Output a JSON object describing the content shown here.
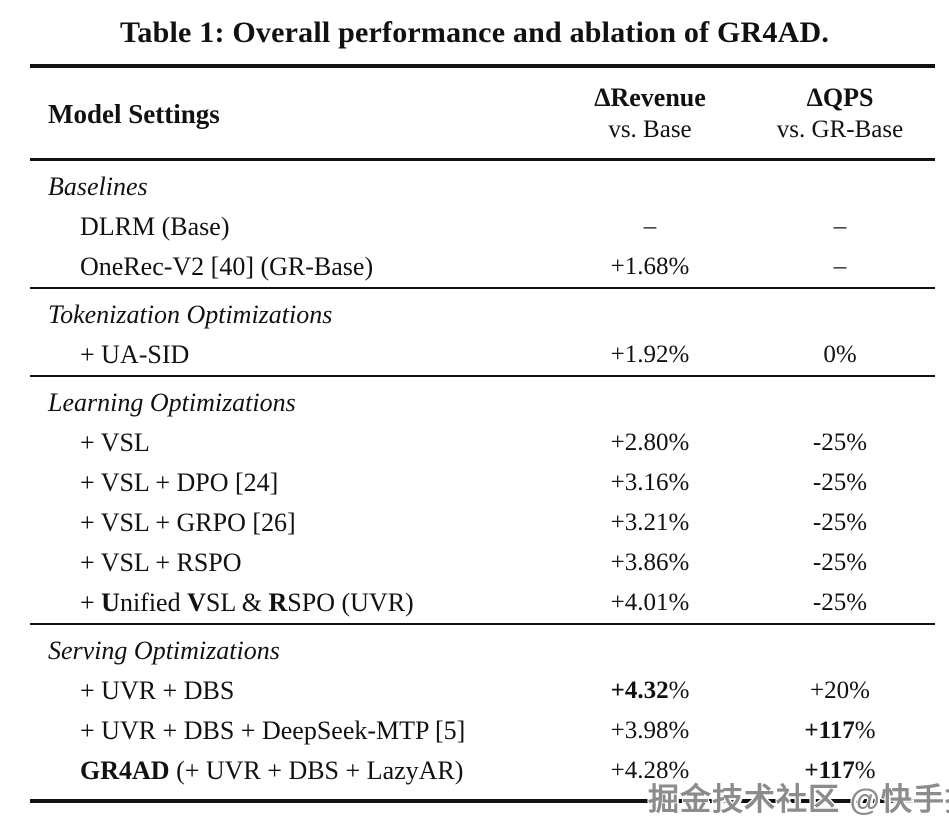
{
  "caption": "Table 1: Overall performance and ablation of GR4AD.",
  "colors": {
    "text": "#111111",
    "rule": "#111111",
    "background": "#ffffff",
    "watermark": "#8c8c8c"
  },
  "table": {
    "columns": {
      "model": "Model Settings",
      "revenue": {
        "label": "ΔRevenue",
        "sub": "vs. Base"
      },
      "qps": {
        "label": "ΔQPS",
        "sub": "vs. GR-Base"
      }
    },
    "sections": [
      {
        "name": "Baselines",
        "rows": [
          {
            "model": [
              {
                "t": "DLRM (Base)"
              }
            ],
            "revenue": [
              {
                "t": "–"
              }
            ],
            "qps": [
              {
                "t": "–"
              }
            ]
          },
          {
            "model": [
              {
                "t": "OneRec-V2 [40] (GR-Base)"
              }
            ],
            "revenue": [
              {
                "t": "+1.68%"
              }
            ],
            "qps": [
              {
                "t": "–"
              }
            ]
          }
        ]
      },
      {
        "name": "Tokenization Optimizations",
        "rows": [
          {
            "model": [
              {
                "t": "+ UA-SID"
              }
            ],
            "revenue": [
              {
                "t": "+1.92%"
              }
            ],
            "qps": [
              {
                "t": "0%"
              }
            ]
          }
        ]
      },
      {
        "name": "Learning Optimizations",
        "rows": [
          {
            "model": [
              {
                "t": "+ VSL"
              }
            ],
            "revenue": [
              {
                "t": "+2.80%"
              }
            ],
            "qps": [
              {
                "t": "-25%"
              }
            ]
          },
          {
            "model": [
              {
                "t": "+ VSL + DPO [24]"
              }
            ],
            "revenue": [
              {
                "t": "+3.16%"
              }
            ],
            "qps": [
              {
                "t": "-25%"
              }
            ]
          },
          {
            "model": [
              {
                "t": "+ VSL + GRPO [26]"
              }
            ],
            "revenue": [
              {
                "t": "+3.21%"
              }
            ],
            "qps": [
              {
                "t": "-25%"
              }
            ]
          },
          {
            "model": [
              {
                "t": "+ VSL + RSPO"
              }
            ],
            "revenue": [
              {
                "t": "+3.86%"
              }
            ],
            "qps": [
              {
                "t": "-25%"
              }
            ]
          },
          {
            "model": [
              {
                "t": "+ "
              },
              {
                "t": "U",
                "b": true
              },
              {
                "t": "nified "
              },
              {
                "t": "V",
                "b": true
              },
              {
                "t": "SL & "
              },
              {
                "t": "R",
                "b": true
              },
              {
                "t": "SPO (UVR)"
              }
            ],
            "revenue": [
              {
                "t": "+4.01%"
              }
            ],
            "qps": [
              {
                "t": "-25%"
              }
            ]
          }
        ]
      },
      {
        "name": "Serving Optimizations",
        "rows": [
          {
            "model": [
              {
                "t": "+ UVR + DBS"
              }
            ],
            "revenue": [
              {
                "t": "+4.32",
                "b": true
              },
              {
                "t": "%"
              }
            ],
            "qps": [
              {
                "t": "+20%"
              }
            ]
          },
          {
            "model": [
              {
                "t": "+ UVR + DBS + DeepSeek-MTP [5]"
              }
            ],
            "revenue": [
              {
                "t": "+3.98%"
              }
            ],
            "qps": [
              {
                "t": "+117",
                "b": true
              },
              {
                "t": "%"
              }
            ]
          },
          {
            "model": [
              {
                "t": "GR4AD",
                "b": true
              },
              {
                "t": " (+ UVR + DBS + LazyAR)"
              }
            ],
            "revenue": [
              {
                "t": "+4.28%"
              }
            ],
            "qps": [
              {
                "t": "+117",
                "b": true
              },
              {
                "t": "%"
              }
            ]
          }
        ]
      }
    ]
  },
  "watermark": "掘金技术社区 @快手技术"
}
